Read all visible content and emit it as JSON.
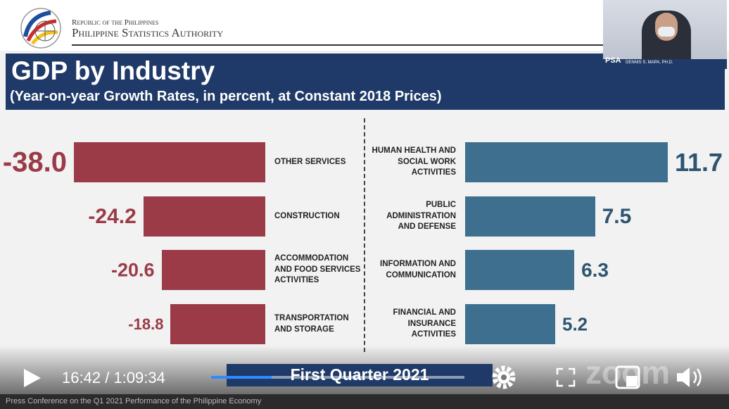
{
  "header": {
    "republic": "Republic of the Philippines",
    "agency": "Philippine Statistics Authority"
  },
  "slide": {
    "title": "GDP by Industry",
    "subtitle": "(Year-on-year Growth Rates, in percent, at Constant 2018 Prices)"
  },
  "chart_data": [
    {
      "type": "bar",
      "orientation": "horizontal",
      "color": "#9b3b47",
      "categories": [
        "OTHER SERVICES",
        "CONSTRUCTION",
        "ACCOMMODATION AND FOOD SERVICES ACTIVITIES",
        "TRANSPORTATION AND STORAGE"
      ],
      "values": [
        -38.0,
        -24.2,
        -20.6,
        -18.8
      ],
      "value_labels": [
        "-38.0",
        "-24.2",
        "-20.6",
        "-18.8"
      ]
    },
    {
      "type": "bar",
      "orientation": "horizontal",
      "color": "#3f6f8f",
      "categories": [
        "HUMAN HEALTH AND SOCIAL WORK ACTIVITIES",
        "PUBLIC ADMINISTRATION AND DEFENSE",
        "INFORMATION AND COMMUNICATION",
        "FINANCIAL AND INSURANCE ACTIVITIES"
      ],
      "values": [
        11.7,
        7.5,
        6.3,
        5.2
      ]
    }
  ],
  "webcam": {
    "badge": "PSA",
    "name": "Dennis S. Mapa, Ph.D."
  },
  "player": {
    "current_time": "16:42",
    "separator": "/",
    "total_time": "1:09:34",
    "banner": "First Quarter 2021",
    "watermark": "zoom",
    "caption": "Press Conference on the Q1 2021 Performance of the Philippine Economy"
  }
}
